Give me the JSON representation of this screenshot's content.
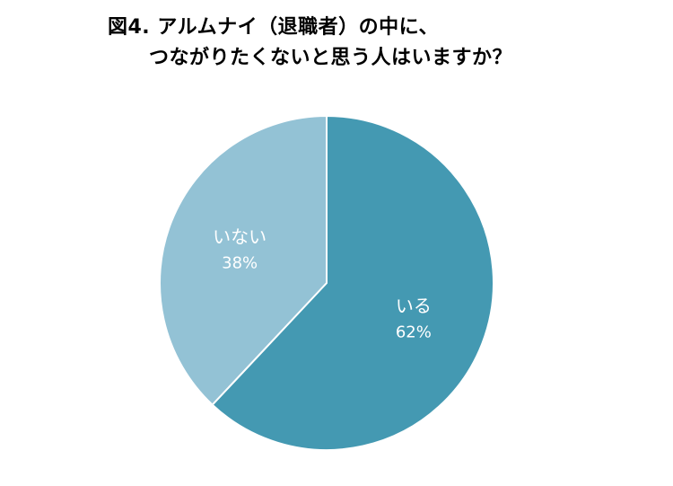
{
  "chart_data": {
    "type": "pie",
    "title_lines": [
      "図4. アルムナイ（退職者）の中に、",
      "つながりたくないと思う人はいますか？"
    ],
    "slices": [
      {
        "label": "いる",
        "value": 62,
        "value_label": "62%",
        "color": "#4499b2"
      },
      {
        "label": "いない",
        "value": 38,
        "value_label": "38%",
        "color": "#93c2d5"
      }
    ],
    "start_angle_deg": 0,
    "direction": "clockwise",
    "border_color": "#ffffff",
    "legend": "none"
  }
}
